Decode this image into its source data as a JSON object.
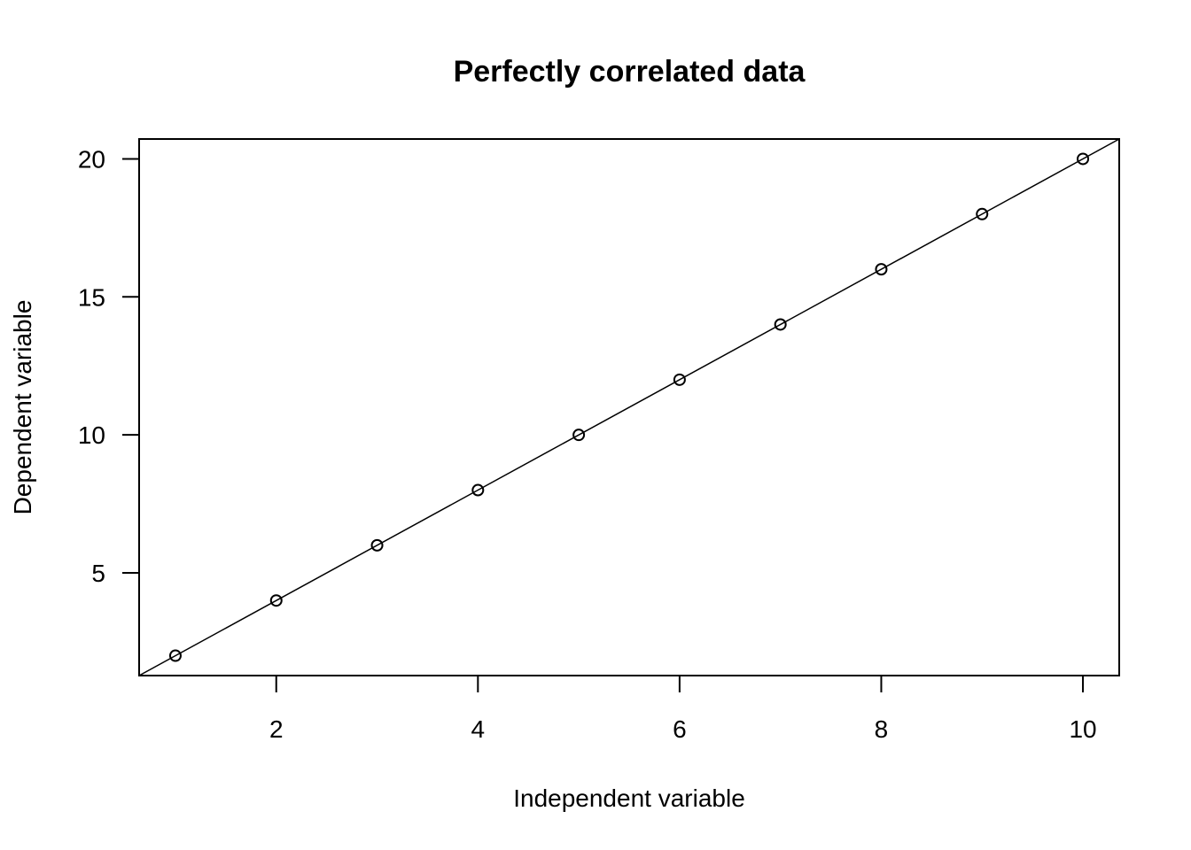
{
  "chart_data": {
    "type": "scatter",
    "title": "Perfectly correlated data",
    "xlabel": "Independent variable",
    "ylabel": "Dependent variable",
    "x": [
      1,
      2,
      3,
      4,
      5,
      6,
      7,
      8,
      9,
      10
    ],
    "y": [
      2,
      4,
      6,
      8,
      10,
      12,
      14,
      16,
      18,
      20
    ],
    "xlim": [
      0.64,
      10.36
    ],
    "ylim": [
      1.28,
      20.72
    ],
    "xticks": [
      2,
      4,
      6,
      8,
      10
    ],
    "yticks": [
      5,
      10,
      15,
      20
    ],
    "fit_line": {
      "intercept": 0,
      "slope": 2
    },
    "marker": "open-circle",
    "grid": false,
    "color": "#000000"
  }
}
